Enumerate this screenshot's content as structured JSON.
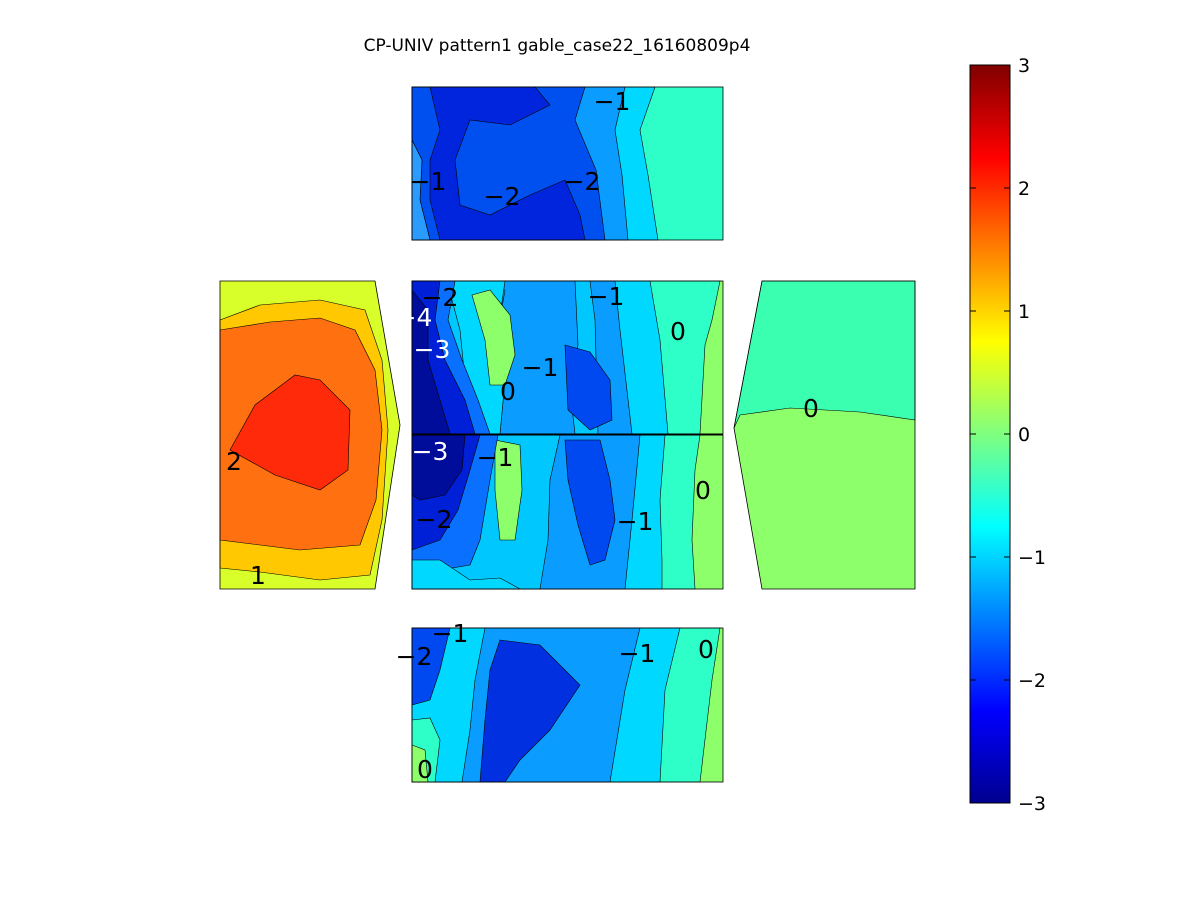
{
  "chart_data": {
    "type": "heatmap",
    "title": "CP-UNIV pattern1 gable_case22_16160809p4",
    "colorbar": {
      "min": -3,
      "max": 3,
      "ticks": [
        "3",
        "2",
        "1",
        "0",
        "−1",
        "−2",
        "−3"
      ],
      "colormap": "jet"
    },
    "panels": [
      {
        "name": "top-face",
        "contour_labels": [
          "−1",
          "−1",
          "−2",
          "−2"
        ]
      },
      {
        "name": "left-face",
        "contour_labels": [
          "2",
          "1"
        ]
      },
      {
        "name": "center-upper-face",
        "contour_labels": [
          "−2",
          "−4",
          "−3",
          "−1",
          "0",
          "−1",
          "0"
        ]
      },
      {
        "name": "center-lower-face",
        "contour_labels": [
          "−3",
          "−1",
          "−2",
          "−1",
          "0"
        ]
      },
      {
        "name": "right-face",
        "contour_labels": [
          "0"
        ]
      },
      {
        "name": "bottom-face",
        "contour_labels": [
          "−2",
          "−1",
          "−1",
          "0",
          "0"
        ]
      }
    ]
  }
}
